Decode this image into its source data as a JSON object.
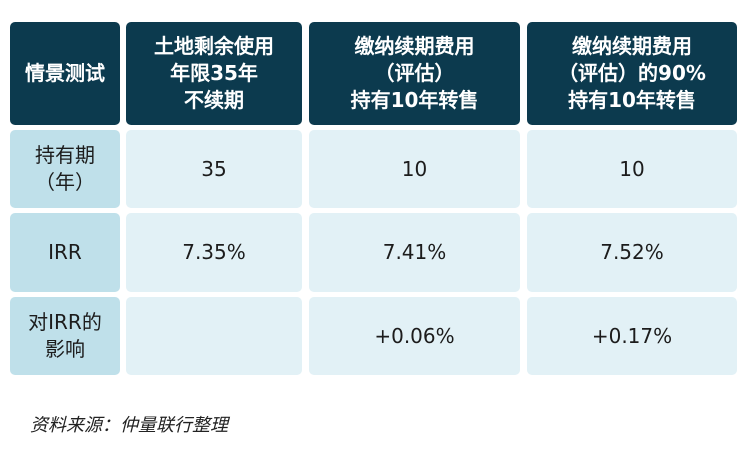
{
  "table": {
    "header": [
      [
        "情景测试"
      ],
      [
        "土地剩余使用",
        "年限35年",
        "不续期"
      ],
      [
        "缴纳续期费用",
        "（评估）",
        "持有10年转售"
      ],
      [
        "缴纳续期费用",
        "（评估）的90%",
        "持有10年转售"
      ]
    ],
    "rows": [
      {
        "label": [
          "持有期",
          "（年）"
        ],
        "cells": [
          "35",
          "10",
          "10"
        ]
      },
      {
        "label": [
          "IRR"
        ],
        "cells": [
          "7.35%",
          "7.41%",
          "7.52%"
        ]
      },
      {
        "label": [
          "对IRR的",
          "影响"
        ],
        "cells": [
          null,
          "+0.06%",
          "+0.17%"
        ]
      }
    ]
  },
  "source": "资料来源：仲量联行整理"
}
